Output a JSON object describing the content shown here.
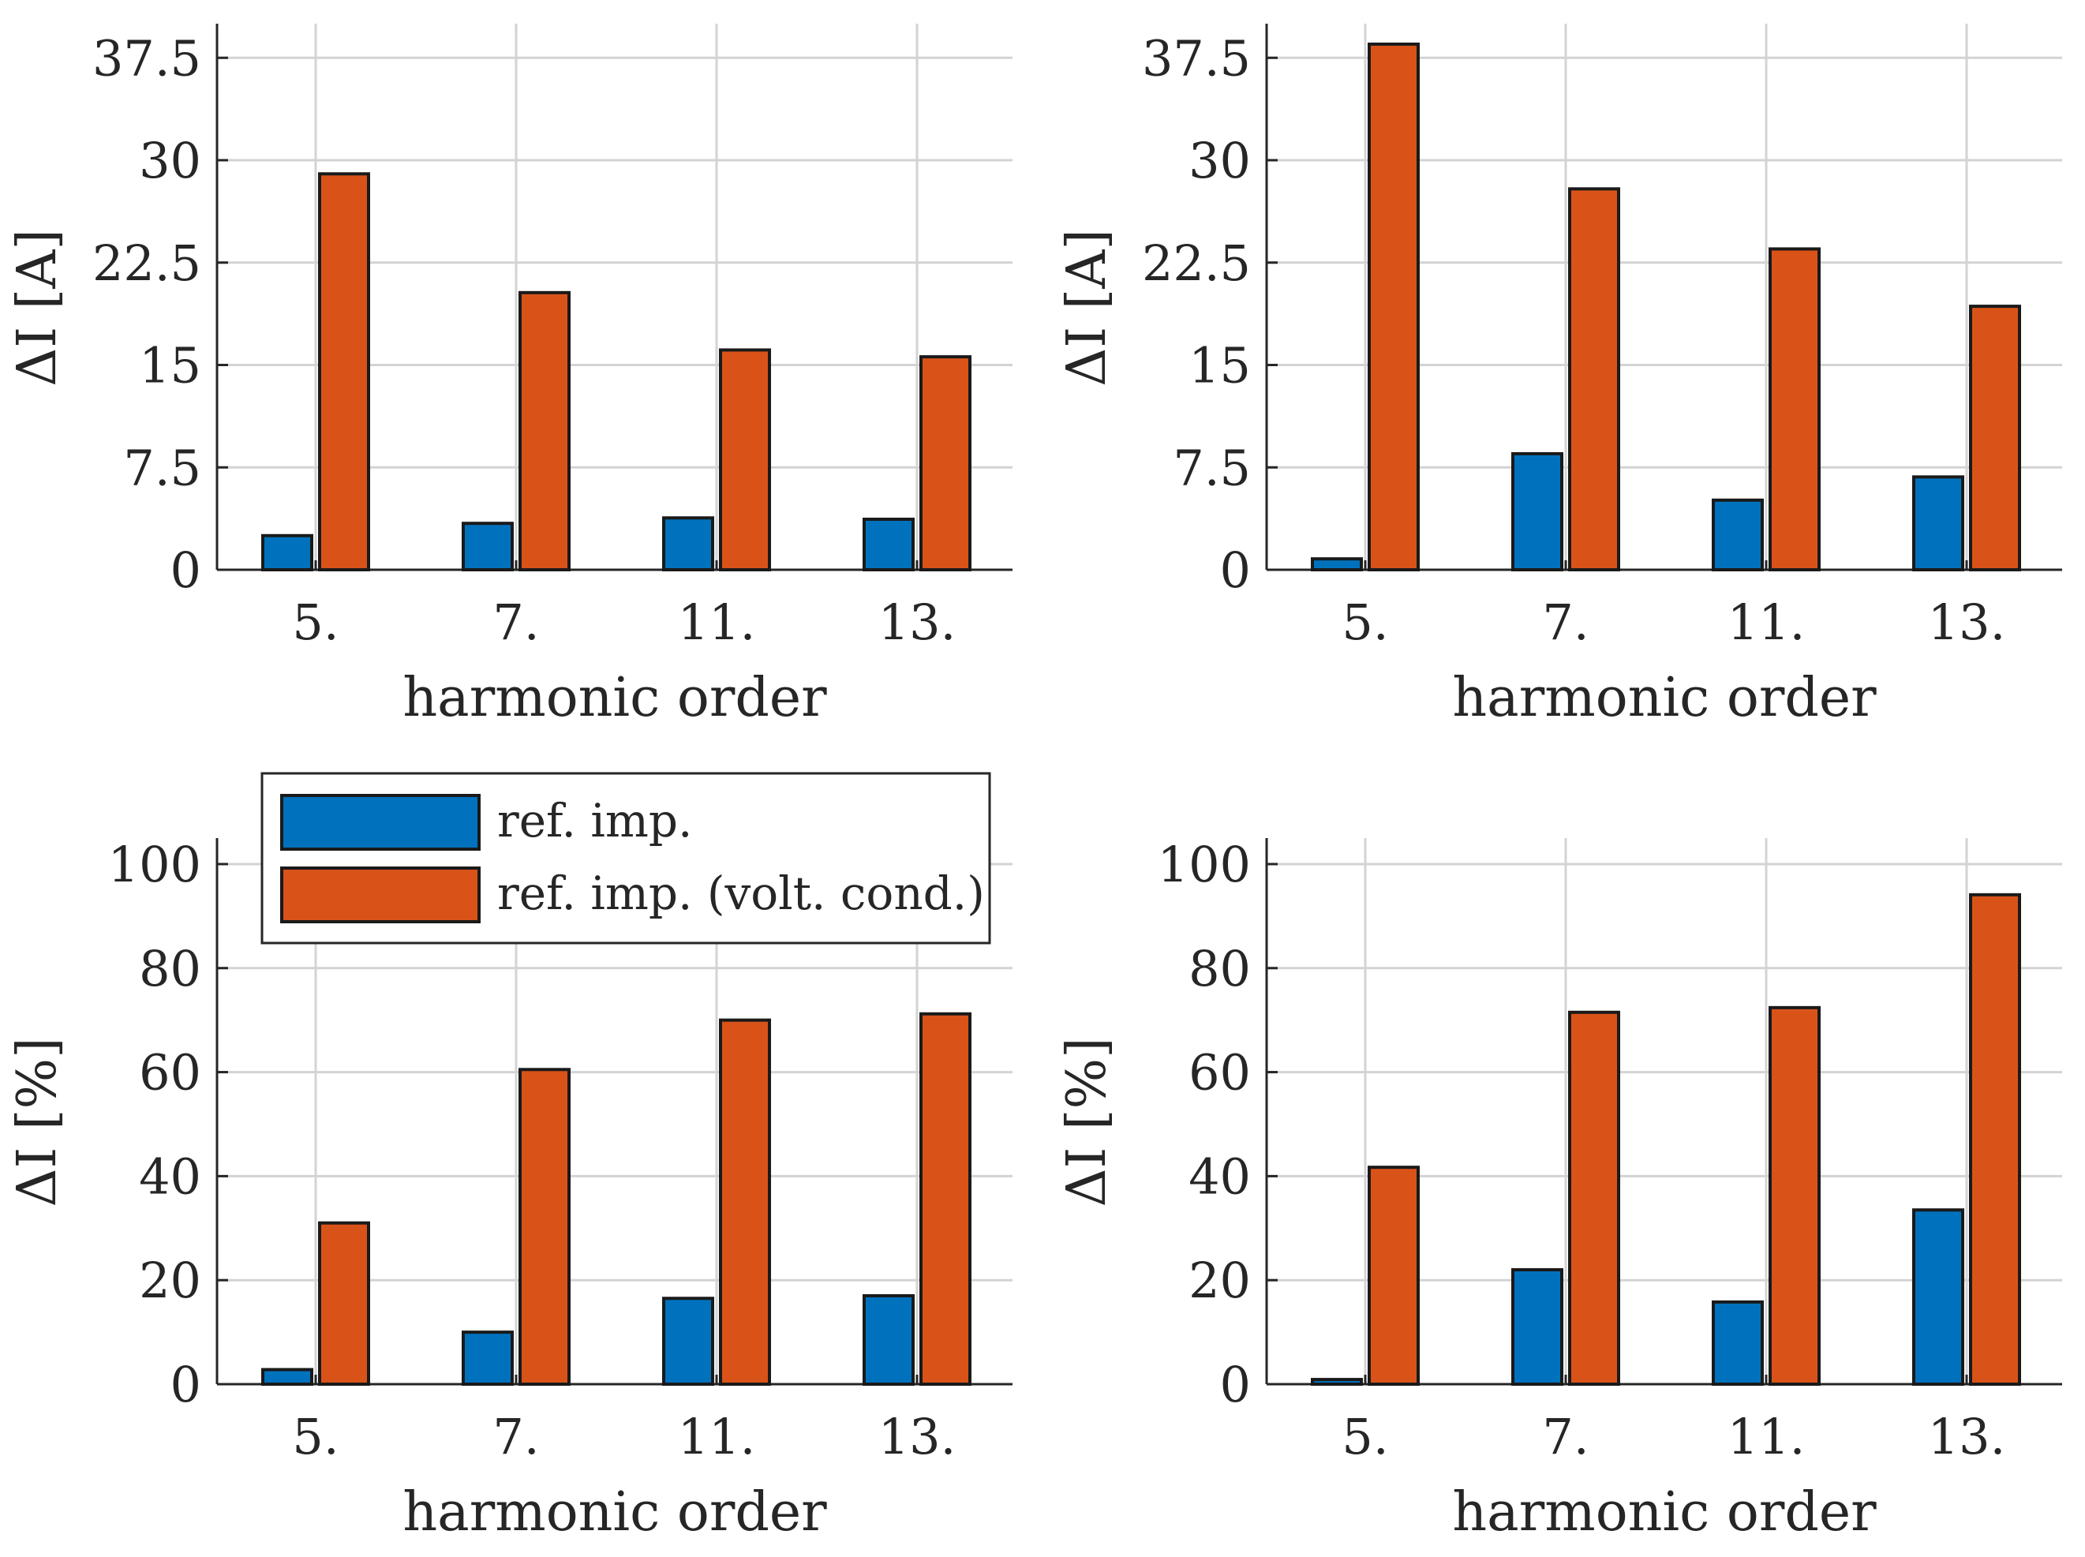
{
  "colors": {
    "ref_imp": "#0072BD",
    "volt_cond": "#D95319"
  },
  "legend": {
    "ref_imp": "ref. imp.",
    "volt_cond": "ref. imp. (volt. cond.)"
  },
  "chart_data": [
    {
      "type": "bar",
      "position": "top-left",
      "categories": [
        "5.",
        "7.",
        "11.",
        "13."
      ],
      "series": [
        {
          "name": "ref. imp.",
          "values": [
            2.5,
            3.4,
            3.8,
            3.7
          ]
        },
        {
          "name": "ref. imp. (volt. cond.)",
          "values": [
            29.0,
            20.3,
            16.1,
            15.6
          ]
        }
      ],
      "xlabel": "harmonic order",
      "ylabel": "ΔI [A]",
      "ylim": [
        0,
        40
      ],
      "yticks": [
        "0",
        "7.5",
        "15",
        "22.5",
        "30",
        "37.5"
      ],
      "grid": true
    },
    {
      "type": "bar",
      "position": "top-right",
      "categories": [
        "5.",
        "7.",
        "11.",
        "13."
      ],
      "series": [
        {
          "name": "ref. imp.",
          "values": [
            0.8,
            8.5,
            5.1,
            6.8
          ]
        },
        {
          "name": "ref. imp. (volt. cond.)",
          "values": [
            38.5,
            27.9,
            23.5,
            19.3
          ]
        }
      ],
      "xlabel": "harmonic order",
      "ylabel": "ΔI [A]",
      "ylim": [
        0,
        40
      ],
      "yticks": [
        "0",
        "7.5",
        "15",
        "22.5",
        "30",
        "37.5"
      ],
      "grid": true
    },
    {
      "type": "bar",
      "position": "bottom-left",
      "categories": [
        "5.",
        "7.",
        "11.",
        "13."
      ],
      "series": [
        {
          "name": "ref. imp.",
          "values": [
            2.8,
            10.0,
            16.5,
            17.0
          ]
        },
        {
          "name": "ref. imp. (volt. cond.)",
          "values": [
            31.0,
            60.5,
            70.0,
            71.2
          ]
        }
      ],
      "xlabel": "harmonic order",
      "ylabel": "ΔI [%]",
      "ylim": [
        0,
        105
      ],
      "yticks": [
        "0",
        "20",
        "40",
        "60",
        "80",
        "100"
      ],
      "grid": true,
      "legend": "top-left"
    },
    {
      "type": "bar",
      "position": "bottom-right",
      "categories": [
        "5.",
        "7.",
        "11.",
        "13."
      ],
      "series": [
        {
          "name": "ref. imp.",
          "values": [
            0.9,
            22.0,
            15.8,
            33.5
          ]
        },
        {
          "name": "ref. imp. (volt. cond.)",
          "values": [
            41.7,
            71.5,
            72.4,
            94.1
          ]
        }
      ],
      "xlabel": "harmonic order",
      "ylabel": "ΔI [%]",
      "ylim": [
        0,
        105
      ],
      "yticks": [
        "0",
        "20",
        "40",
        "60",
        "80",
        "100"
      ],
      "grid": true
    }
  ]
}
